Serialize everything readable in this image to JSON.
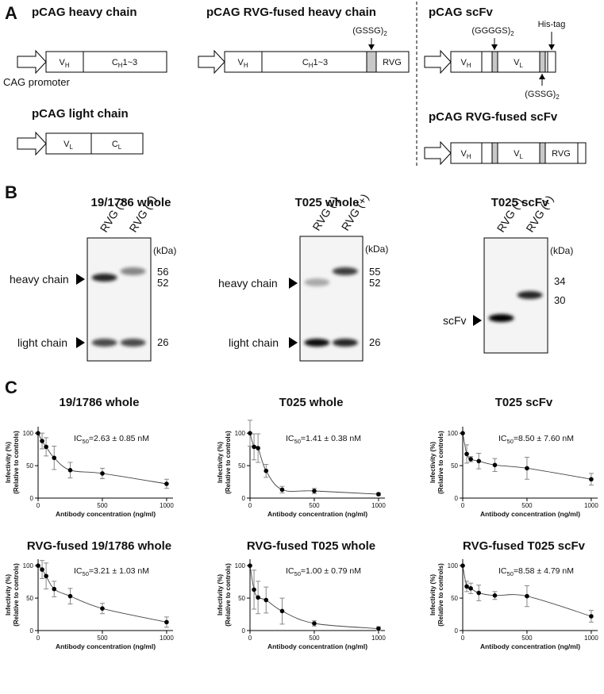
{
  "panel_a": {
    "label": "A",
    "titles": [
      "pCAG heavy chain",
      "pCAG light chain",
      "pCAG RVG-fused heavy chain",
      "pCAG scFv",
      "pCAG RVG-fused scFv"
    ],
    "promoter": "CAG promoter",
    "vh": {
      "main": "V",
      "sub": "H"
    },
    "vl": {
      "main": "V",
      "sub": "L"
    },
    "ch": {
      "main": "C",
      "sub": "H",
      "rest": "1~3"
    },
    "cl": {
      "main": "C",
      "sub": "L"
    },
    "rvg": "RVG",
    "gssg": {
      "main": "(GSSG)",
      "sub": "2"
    },
    "ggggs": {
      "main": "(GGGGS)",
      "sub": "2"
    },
    "his_tag": "His-tag"
  },
  "panel_b": {
    "label": "B",
    "blots": [
      {
        "title": "19/1786 whole",
        "lanes": [
          "RVG (-)",
          "RVG (+)"
        ],
        "unit": "(kDa)",
        "markers": [
          56,
          52,
          26
        ],
        "bands": [
          "heavy chain",
          "light chain"
        ]
      },
      {
        "title": "T025 whole",
        "lanes": [
          "RVG (-)",
          "RVG (+)"
        ],
        "unit": "(kDa)",
        "markers": [
          55,
          52,
          26
        ],
        "bands": [
          "heavy chain",
          "light chain"
        ]
      },
      {
        "title": "T025 scFv",
        "lanes": [
          "RVG (-)",
          "RVG (+)"
        ],
        "unit": "(kDa)",
        "markers": [
          34,
          30
        ],
        "bands": [
          "scFv"
        ]
      }
    ]
  },
  "panel_c": {
    "label": "C"
  },
  "chart_data": [
    {
      "type": "scatter",
      "title": "19/1786 whole",
      "annotation": {
        "main": "IC",
        "sub": "50",
        "rest": "=2.63 ± 0.85 nM"
      },
      "xlabel": "Antibody concentration (ng/ml)",
      "ylabel": "Infectivity (%)",
      "ylabel_note": "(Relative to controls)",
      "x": [
        0,
        31.25,
        62.5,
        125,
        250,
        500,
        1000
      ],
      "values": [
        100,
        88,
        79,
        62,
        43,
        38,
        22
      ],
      "errors": [
        0,
        12,
        14,
        18,
        12,
        8,
        7
      ],
      "xlim": [
        0,
        1050
      ],
      "xticks": [
        0,
        500,
        1000
      ],
      "ylim": [
        0,
        110
      ],
      "yticks": [
        0,
        50,
        100
      ]
    },
    {
      "type": "scatter",
      "title": "T025 whole",
      "annotation": {
        "main": "IC",
        "sub": "50",
        "rest": "=1.41 ± 0.38 nM"
      },
      "xlabel": "Antibody concentration (ng/ml)",
      "ylabel": "Infectivity (%)",
      "ylabel_note": "(Relative to controls)",
      "x": [
        0,
        31.25,
        62.5,
        125,
        250,
        500,
        1000
      ],
      "values": [
        100,
        79,
        77,
        42,
        13,
        11,
        6
      ],
      "errors": [
        20,
        20,
        22,
        10,
        5,
        4,
        2
      ],
      "xlim": [
        0,
        1050
      ],
      "xticks": [
        0,
        500,
        1000
      ],
      "ylim": [
        0,
        110
      ],
      "yticks": [
        0,
        50,
        100
      ]
    },
    {
      "type": "scatter",
      "title": "T025 scFv",
      "annotation": {
        "main": "IC",
        "sub": "50",
        "rest": "=8.50 ± 7.60 nM"
      },
      "xlabel": "Antibody concentration (ng/ml)",
      "ylabel": "Infectivity (%)",
      "ylabel_note": "(Relative to controls)",
      "x": [
        0,
        31.25,
        62.5,
        125,
        250,
        500,
        1000
      ],
      "values": [
        100,
        68,
        60,
        57,
        51,
        46,
        29
      ],
      "errors": [
        0,
        14,
        4,
        12,
        10,
        17,
        9
      ],
      "xlim": [
        0,
        1050
      ],
      "xticks": [
        0,
        500,
        1000
      ],
      "ylim": [
        0,
        110
      ],
      "yticks": [
        0,
        50,
        100
      ]
    },
    {
      "type": "scatter",
      "title": "RVG-fused 19/1786 whole",
      "annotation": {
        "main": "IC",
        "sub": "50",
        "rest": "=3.21 ± 1.03 nM"
      },
      "xlabel": "Antibody concentration (ng/ml)",
      "ylabel": "Infectivity (%)",
      "ylabel_note": "(Relative to controls)",
      "x": [
        0,
        31.25,
        62.5,
        125,
        250,
        500,
        1000
      ],
      "values": [
        100,
        94,
        84,
        64,
        53,
        34,
        13
      ],
      "errors": [
        0,
        14,
        20,
        12,
        12,
        8,
        8
      ],
      "xlim": [
        0,
        1050
      ],
      "xticks": [
        0,
        500,
        1000
      ],
      "ylim": [
        0,
        110
      ],
      "yticks": [
        0,
        50,
        100
      ]
    },
    {
      "type": "scatter",
      "title": "RVG-fused T025 whole",
      "annotation": {
        "main": "IC",
        "sub": "50",
        "rest": "=1.00 ± 0.79 nM"
      },
      "xlabel": "Antibody concentration (ng/ml)",
      "ylabel": "Infectivity (%)",
      "ylabel_note": "(Relative to controls)",
      "x": [
        0,
        31.25,
        62.5,
        125,
        250,
        500,
        1000
      ],
      "values": [
        100,
        63,
        51,
        47,
        30,
        11,
        3
      ],
      "errors": [
        0,
        30,
        25,
        20,
        20,
        4,
        3
      ],
      "xlim": [
        0,
        1050
      ],
      "xticks": [
        0,
        500,
        1000
      ],
      "ylim": [
        0,
        110
      ],
      "yticks": [
        0,
        50,
        100
      ]
    },
    {
      "type": "scatter",
      "title": "RVG-fused T025 scFv",
      "annotation": {
        "main": "IC",
        "sub": "50",
        "rest": "=8.58 ± 4.79 nM"
      },
      "xlabel": "Antibody concentration (ng/ml)",
      "ylabel": "Infectivity (%)",
      "ylabel_note": "(Relative to controls)",
      "x": [
        0,
        31.25,
        62.5,
        125,
        250,
        500,
        1000
      ],
      "values": [
        100,
        68,
        65,
        58,
        54,
        53,
        22
      ],
      "errors": [
        0,
        8,
        8,
        12,
        6,
        16,
        9
      ],
      "xlim": [
        0,
        1050
      ],
      "xticks": [
        0,
        500,
        1000
      ],
      "ylim": [
        0,
        110
      ],
      "yticks": [
        0,
        50,
        100
      ]
    }
  ]
}
